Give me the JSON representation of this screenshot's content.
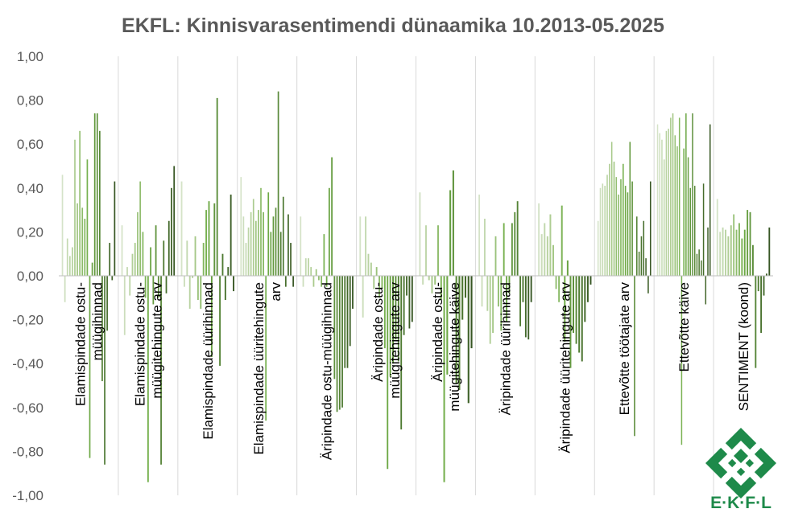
{
  "chart_data": {
    "type": "bar",
    "title": "EKFL: Kinnisvarasentimendi dünaamika 10.2013-05.2025",
    "xlabel": "",
    "ylabel": "",
    "ylim": [
      -1.0,
      1.0
    ],
    "y_ticks": [
      "1,00",
      "0,80",
      "0,60",
      "0,40",
      "0,20",
      "0,00",
      "-0,20",
      "-0,40",
      "-0,60",
      "-0,80",
      "-1,00"
    ],
    "y_tick_values": [
      1.0,
      0.8,
      0.6,
      0.4,
      0.2,
      0.0,
      -0.2,
      -0.4,
      -0.6,
      -0.8,
      -1.0
    ],
    "grid": "vertical category separators",
    "legend": "none",
    "color_gradient": [
      "#d5e3c8",
      "#a9ca8c",
      "#70ad47",
      "#548235",
      "#375623"
    ],
    "categories": [
      "Elamispindade ostu-müügihinnad",
      "Elamispindade ostu-müügitehingute arv",
      "Elamispindade üürihinnad",
      "Elamispindade üüritehingute arv",
      "Äripindade ostu-müügihinnad",
      "Äripindade ostu-müügitehingute arv",
      "Äripindade ostu-müügitehingute käive",
      "Äripindade üürihinnad",
      "Äripindade üüritehingute arv",
      "Ettevõtte töötajate arv",
      "Ettevõtte käive",
      "SENTIMENT (koond)"
    ],
    "category_label_lines": [
      [
        "Elamispindade ostu-",
        "müügihinnad"
      ],
      [
        "Elamispindade ostu-",
        "müügitehingute arv"
      ],
      [
        "Elamispindade üürihinnad"
      ],
      [
        "Elamispindade üüritehingute",
        "arv"
      ],
      [
        "Äripindade ostu-müügihinnad"
      ],
      [
        "Äripindade ostu-",
        "müügitehingute arv"
      ],
      [
        "Äripindade ostu-",
        "müügitehingute käive"
      ],
      [
        "Äripindade üürihinnad"
      ],
      [
        "Äripindade üüritehingute arv"
      ],
      [
        "Ettevõtte töötajate arv"
      ],
      [
        "Ettevõtte käive"
      ],
      [
        "SENTIMENT (koond)"
      ]
    ],
    "series_values": [
      [
        0.46,
        -0.12,
        0.17,
        0.09,
        0.13,
        0.62,
        0.33,
        0.66,
        0.31,
        0.26,
        0.53,
        -0.83,
        0.06,
        0.74,
        0.74,
        0.66,
        -0.48,
        -0.86,
        -0.25,
        0.15,
        -0.02,
        0.43
      ],
      [
        0.23,
        -0.27,
        0.04,
        -0.09,
        0.1,
        0.15,
        0.29,
        0.43,
        0.2,
        -0.1,
        -0.94,
        0.13,
        -0.13,
        0.23,
        -0.1,
        -0.86,
        0.16,
        -0.08,
        0.25,
        0.4,
        0.5
      ],
      [
        0.43,
        -0.05,
        0.16,
        -0.15,
        -0.01,
        0.18,
        -0.11,
        -0.15,
        0.15,
        0.3,
        0.34,
        -0.37,
        0.33,
        0.81,
        -0.41,
        0.1,
        -0.11,
        0.04,
        0.37,
        -0.07
      ],
      [
        0.45,
        0.27,
        0.15,
        0.22,
        0.29,
        0.35,
        0.25,
        0.3,
        0.4,
        0.29,
        -0.66,
        0.38,
        0.2,
        0.27,
        0.31,
        0.84,
        0.2,
        0.36,
        -0.05,
        0.28,
        0.15,
        -0.05
      ],
      [
        0.27,
        -0.05,
        0.08,
        0.08,
        0.04,
        -0.05,
        0.03,
        -0.02,
        -0.05,
        0.19,
        -0.05,
        0.4,
        0.54,
        -0.47,
        -0.62,
        -0.61,
        -0.6,
        -0.42,
        -0.42,
        -0.32,
        -0.15
      ],
      [
        0.27,
        -0.19,
        0.27,
        0.1,
        0.06,
        -0.06,
        0.04,
        -0.1,
        -0.06,
        -0.33,
        -0.88,
        -0.46,
        -0.4,
        -0.29,
        -0.39,
        -0.7,
        -0.27,
        -0.09,
        -0.24,
        -0.21
      ],
      [
        0.38,
        -0.04,
        0.23,
        -0.02,
        -0.08,
        -0.04,
        0.23,
        -0.11,
        -0.94,
        -0.45,
        0.39,
        0.48,
        -0.49,
        -0.52,
        -0.2,
        -0.1,
        -0.58,
        -0.33
      ],
      [
        0.37,
        -0.14,
        0.26,
        -0.16,
        -0.31,
        -0.26,
        0.18,
        -0.14,
        -0.25,
        0.24,
        -0.21,
        -0.08,
        0.24,
        0.29,
        0.34,
        -0.23,
        -0.12,
        -0.28,
        -0.29,
        -0.12
      ],
      [
        0.33,
        0.19,
        0.24,
        0.18,
        0.28,
        0.14,
        -0.06,
        -0.12,
        0.32,
        -0.3,
        0.07,
        -0.42,
        -0.26,
        -0.31,
        -0.35,
        -0.39,
        -0.21,
        -0.12,
        -0.04
      ],
      [
        0.25,
        0.4,
        0.42,
        0.41,
        0.46,
        0.51,
        0.61,
        0.52,
        0.45,
        0.37,
        0.44,
        0.51,
        0.41,
        0.38,
        0.61,
        0.43,
        -0.73,
        0.27,
        0.11,
        0.18,
        0.25,
        0.08,
        -0.08,
        0.43
      ],
      [
        0.69,
        0.65,
        0.62,
        0.53,
        0.66,
        0.67,
        0.72,
        0.74,
        0.64,
        0.59,
        0.72,
        -0.77,
        0.58,
        0.74,
        0.54,
        0.4,
        0.74,
        0.41,
        0.1,
        0.12,
        0.07,
        0.42,
        -0.13,
        0.22,
        0.69
      ],
      [
        0.35,
        0.2,
        0.22,
        0.21,
        0.18,
        0.23,
        0.28,
        0.21,
        0.24,
        0.17,
        0.21,
        0.3,
        0.29,
        0.14,
        -0.42,
        -0.07,
        -0.26,
        -0.09,
        0.01,
        0.22
      ]
    ]
  },
  "logo": {
    "text": "E·K·F·L",
    "color": "#1e8a4a"
  }
}
